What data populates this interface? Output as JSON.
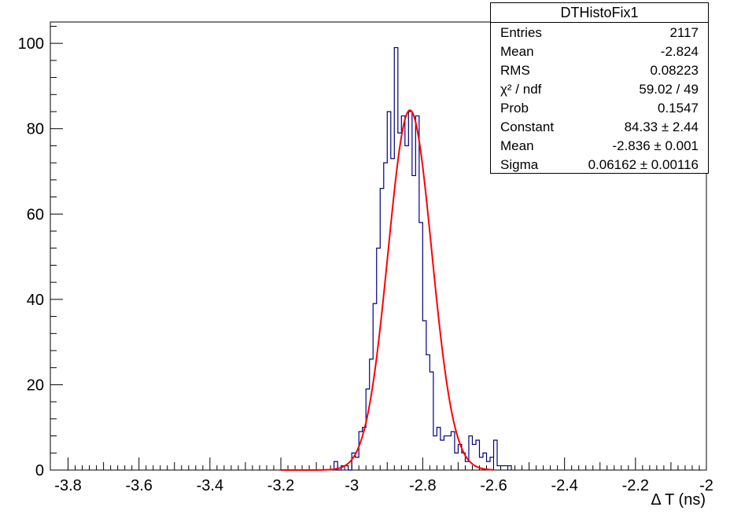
{
  "chart_data": {
    "type": "histogram",
    "histogram_name": "DTHistoFix1",
    "xlabel": "Δ T (ns)",
    "ylabel": "",
    "xlim": [
      -3.85,
      -2.0
    ],
    "ylim": [
      0,
      105
    ],
    "x_ticks": [
      "-3.8",
      "-3.6",
      "-3.4",
      "-3.2",
      "-3",
      "-2.8",
      "-2.6",
      "-2.4",
      "-2.2",
      "-2"
    ],
    "y_ticks": [
      "0",
      "20",
      "40",
      "60",
      "80",
      "100"
    ],
    "bin_edges": [
      -3.05,
      -3.04,
      -3.03,
      -3.02,
      -3.01,
      -3.0,
      -2.99,
      -2.98,
      -2.97,
      -2.96,
      -2.95,
      -2.94,
      -2.93,
      -2.92,
      -2.91,
      -2.9,
      -2.89,
      -2.88,
      -2.87,
      -2.86,
      -2.85,
      -2.84,
      -2.83,
      -2.82,
      -2.81,
      -2.8,
      -2.79,
      -2.78,
      -2.77,
      -2.76,
      -2.75,
      -2.74,
      -2.73,
      -2.72,
      -2.71,
      -2.7,
      -2.69,
      -2.68,
      -2.67,
      -2.66,
      -2.65,
      -2.64,
      -2.63,
      -2.62,
      -2.61,
      -2.6,
      -2.59,
      -2.58,
      -2.57,
      -2.56,
      -2.55
    ],
    "counts": [
      2,
      0,
      1,
      1,
      0,
      4,
      3,
      9,
      10,
      19,
      26,
      39,
      52,
      66,
      72,
      84,
      73,
      99,
      79,
      83,
      76,
      84,
      69,
      83,
      58,
      35,
      27,
      23,
      8,
      10,
      7,
      8,
      8,
      9,
      4,
      6,
      4,
      2,
      8,
      6,
      7,
      3,
      4,
      2,
      3,
      7,
      1,
      1,
      1,
      1
    ],
    "series": [
      {
        "name": "data",
        "color": "#000080",
        "style": "step"
      },
      {
        "name": "gaussian fit",
        "color": "#ff0000",
        "style": "line",
        "constant": 84.33,
        "mean": -2.836,
        "sigma": 0.06162,
        "range": [
          -3.2,
          -2.6
        ]
      }
    ],
    "grid": false,
    "legend": "none"
  },
  "stats": {
    "title": "DTHistoFix1",
    "rows": [
      {
        "label": "Entries",
        "value": "2117"
      },
      {
        "label": "Mean",
        "value": "-2.824"
      },
      {
        "label": "RMS",
        "value": "0.08223"
      },
      {
        "label": "χ² / ndf",
        "value": "59.02 / 49"
      },
      {
        "label": "Prob",
        "value": "0.1547"
      },
      {
        "label": "Constant",
        "value": "84.33 ± 2.44"
      },
      {
        "label": "Mean",
        "value": "-2.836 ± 0.001"
      },
      {
        "label": "Sigma",
        "value": "0.06162 ± 0.00116"
      }
    ]
  }
}
